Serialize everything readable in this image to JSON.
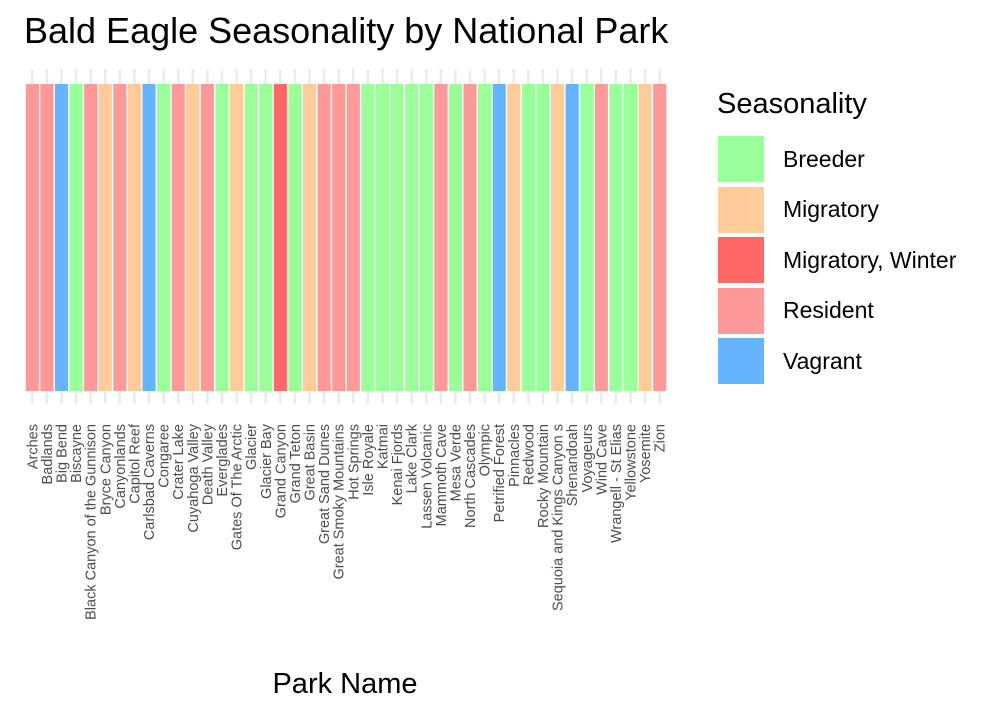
{
  "chart_data": {
    "type": "bar",
    "title": "Bald Eagle Seasonality by National Park",
    "xlabel": "Park Name",
    "ylabel": "",
    "grid": true,
    "legend_position": "right",
    "legend_title": "Seasonality",
    "legend": [
      {
        "name": "Breeder",
        "color": "#99ff99"
      },
      {
        "name": "Migratory",
        "color": "#ffcc99"
      },
      {
        "name": "Migratory, Winter",
        "color": "#ff6666"
      },
      {
        "name": "Resident",
        "color": "#ff9999"
      },
      {
        "name": "Vagrant",
        "color": "#66b3ff"
      }
    ],
    "categories": [
      "Arches",
      "Badlands",
      "Big Bend",
      "Biscayne",
      "Black Canyon of the Gunnison",
      "Bryce Canyon",
      "Canyonlands",
      "Capitol Reef",
      "Carlsbad Caverns",
      "Congaree",
      "Crater Lake",
      "Cuyahoga Valley",
      "Death Valley",
      "Everglades",
      "Gates Of The Arctic",
      "Glacier",
      "Glacier Bay",
      "Grand Canyon",
      "Grand Teton",
      "Great Basin",
      "Great Sand Dunes",
      "Great Smoky Mountains",
      "Hot Springs",
      "Isle Royale",
      "Katmai",
      "Kenai Fjords",
      "Lake Clark",
      "Lassen Volcanic",
      "Mammoth Cave",
      "Mesa Verde",
      "North Cascades",
      "Olympic",
      "Petrified Forest",
      "Pinnacles",
      "Redwood",
      "Rocky Mountain",
      "Sequoia and Kings Canyon s",
      "Shenandoah",
      "Voyageurs",
      "Wind Cave",
      "Wrangell - St Elias",
      "Yellowstone",
      "Yosemite",
      "Zion"
    ],
    "seasonality": [
      "Resident",
      "Resident",
      "Vagrant",
      "Breeder",
      "Resident",
      "Migratory",
      "Resident",
      "Migratory",
      "Vagrant",
      "Breeder",
      "Resident",
      "Migratory",
      "Resident",
      "Breeder",
      "Migratory",
      "Breeder",
      "Breeder",
      "Migratory, Winter",
      "Breeder",
      "Migratory",
      "Resident",
      "Resident",
      "Resident",
      "Breeder",
      "Breeder",
      "Breeder",
      "Breeder",
      "Breeder",
      "Resident",
      "Breeder",
      "Resident",
      "Breeder",
      "Vagrant",
      "Migratory",
      "Breeder",
      "Breeder",
      "Migratory",
      "Vagrant",
      "Breeder",
      "Resident",
      "Breeder",
      "Breeder",
      "Migratory",
      "Resident"
    ],
    "values": [
      1,
      1,
      1,
      1,
      1,
      1,
      1,
      1,
      1,
      1,
      1,
      1,
      1,
      1,
      1,
      1,
      1,
      1,
      1,
      1,
      1,
      1,
      1,
      1,
      1,
      1,
      1,
      1,
      1,
      1,
      1,
      1,
      1,
      1,
      1,
      1,
      1,
      1,
      1,
      1,
      1,
      1,
      1,
      1
    ],
    "ylim": [
      0,
      1
    ]
  }
}
